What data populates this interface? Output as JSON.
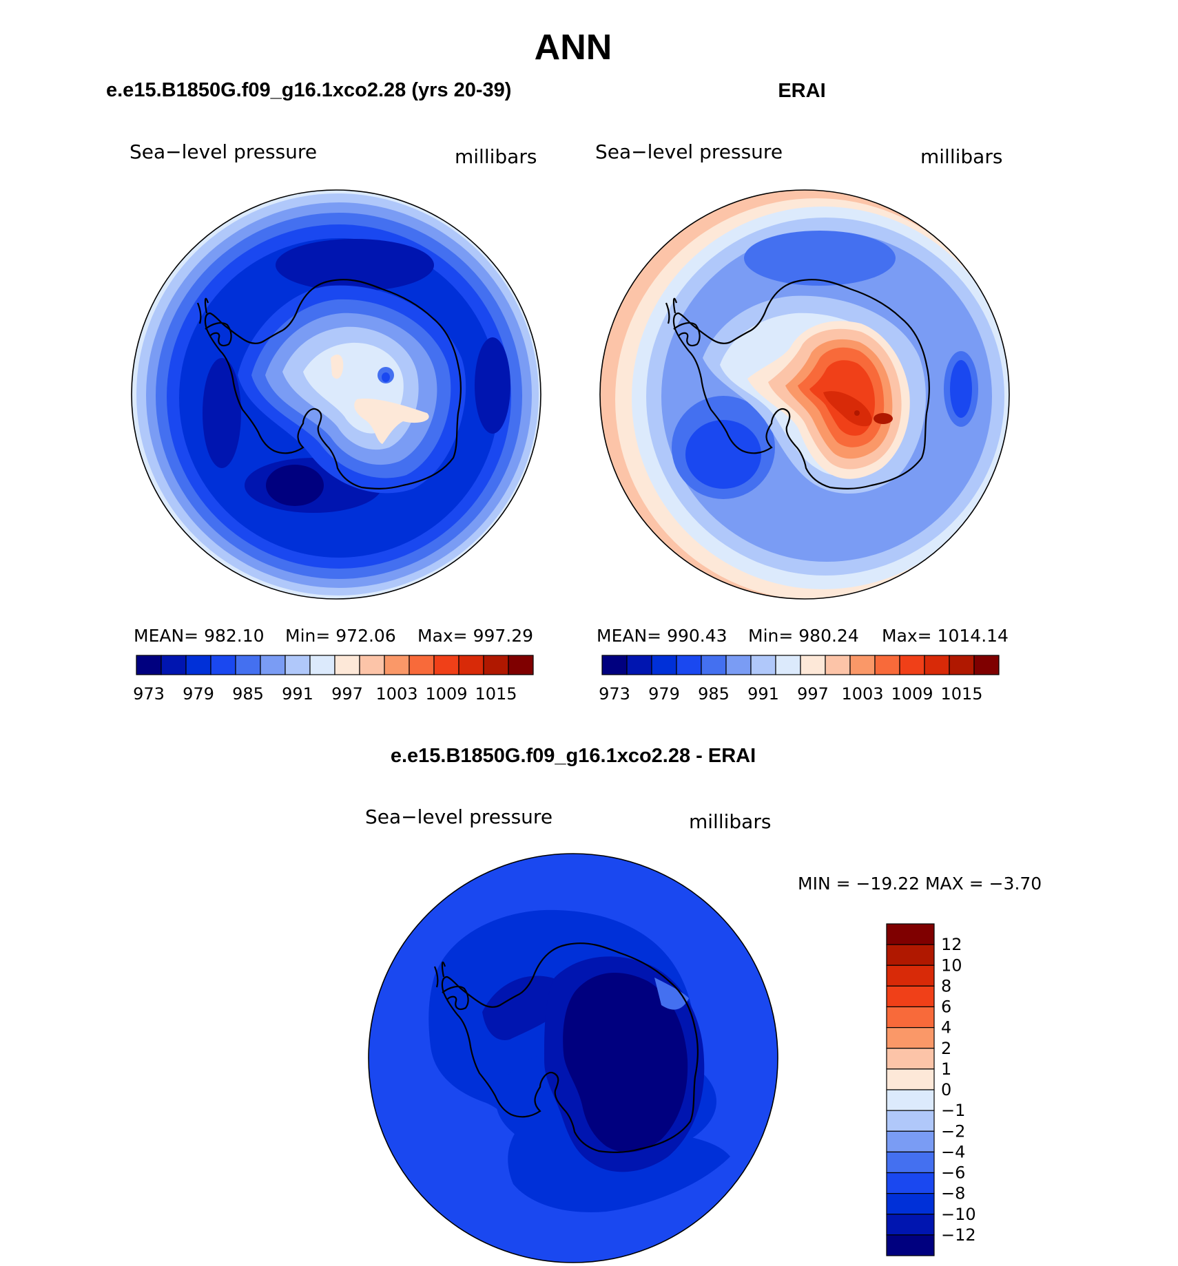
{
  "page": {
    "title": "ANN"
  },
  "colors": {
    "abs_palette": [
      "#00007f",
      "#0015b0",
      "#0030d8",
      "#1a48f0",
      "#4470f0",
      "#7a9cf4",
      "#b0c8fa",
      "#dceafc",
      "#fde8d8",
      "#fcc4a8",
      "#fa9868",
      "#f86a3a",
      "#f04018",
      "#d82a08",
      "#b01800",
      "#7f0000"
    ],
    "diff_palette": [
      "#00007f",
      "#0015b0",
      "#0030d8",
      "#1a48f0",
      "#4470f0",
      "#7a9cf4",
      "#b0c8fa",
      "#dceafc",
      "#fde8d8",
      "#fcc4a8",
      "#fa9868",
      "#f86a3a",
      "#f04018",
      "#d82a08",
      "#b01800",
      "#7f0000"
    ]
  },
  "panels": {
    "model": {
      "case_title": "e.e15.B1850G.f09_g16.1xco2.28 (yrs 20-39)",
      "variable": "Sea−level  pressure",
      "units": "millibars",
      "stats": {
        "mean": "MEAN=  982.10",
        "min": "Min=  972.06",
        "max": "Max=  997.29"
      }
    },
    "obs": {
      "case_title": "ERAI",
      "variable": "Sea−level  pressure",
      "units": "millibars",
      "stats": {
        "mean": "MEAN=  990.43",
        "min": "Min=  980.24",
        "max": "Max=  1014.14"
      }
    },
    "diff": {
      "case_title": "e.e15.B1850G.f09_g16.1xco2.28 - ERAI",
      "variable": "Sea−level  pressure",
      "units": "millibars",
      "stats": {
        "minmax": "MIN  =  −19.22  MAX  =    −3.70"
      }
    }
  },
  "colorbars": {
    "abs_ticks": [
      "973",
      "979",
      "985",
      "991",
      "997",
      "1003",
      "1009",
      "1015"
    ],
    "diff_ticks": [
      "12",
      "10",
      "8",
      "6",
      "4",
      "2",
      "1",
      "0",
      "−1",
      "−2",
      "−4",
      "−6",
      "−8",
      "−10",
      "−12"
    ]
  }
}
